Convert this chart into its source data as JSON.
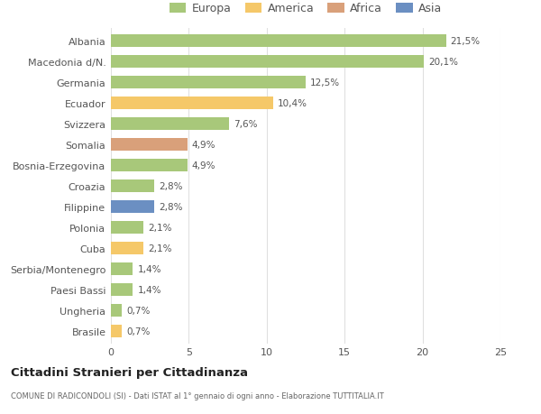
{
  "categories": [
    "Albania",
    "Macedonia d/N.",
    "Germania",
    "Ecuador",
    "Svizzera",
    "Somalia",
    "Bosnia-Erzegovina",
    "Croazia",
    "Filippine",
    "Polonia",
    "Cuba",
    "Serbia/Montenegro",
    "Paesi Bassi",
    "Ungheria",
    "Brasile"
  ],
  "values": [
    21.5,
    20.1,
    12.5,
    10.4,
    7.6,
    4.9,
    4.9,
    2.8,
    2.8,
    2.1,
    2.1,
    1.4,
    1.4,
    0.7,
    0.7
  ],
  "labels": [
    "21,5%",
    "20,1%",
    "12,5%",
    "10,4%",
    "7,6%",
    "4,9%",
    "4,9%",
    "2,8%",
    "2,8%",
    "2,1%",
    "2,1%",
    "1,4%",
    "1,4%",
    "0,7%",
    "0,7%"
  ],
  "colors": [
    "#a8c87a",
    "#a8c87a",
    "#a8c87a",
    "#f5c869",
    "#a8c87a",
    "#d9a07a",
    "#a8c87a",
    "#a8c87a",
    "#6b8fc2",
    "#a8c87a",
    "#f5c869",
    "#a8c87a",
    "#a8c87a",
    "#a8c87a",
    "#f5c869"
  ],
  "legend_labels": [
    "Europa",
    "America",
    "Africa",
    "Asia"
  ],
  "legend_colors": [
    "#a8c87a",
    "#f5c869",
    "#d9a07a",
    "#6b8fc2"
  ],
  "title": "Cittadini Stranieri per Cittadinanza",
  "subtitle": "COMUNE DI RADICONDOLI (SI) - Dati ISTAT al 1° gennaio di ogni anno - Elaborazione TUTTITALIA.IT",
  "xlim": [
    0,
    25
  ],
  "xticks": [
    0,
    5,
    10,
    15,
    20,
    25
  ],
  "bg_color": "#ffffff",
  "grid_color": "#e0e0e0",
  "bar_height": 0.65
}
